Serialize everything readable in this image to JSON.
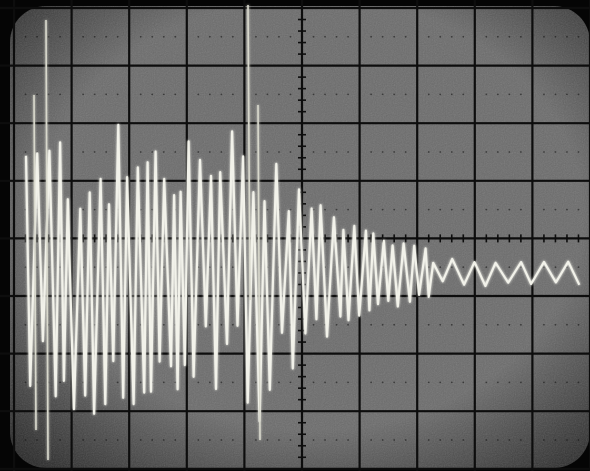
{
  "photo": {
    "subject": "oscilloscope-screen",
    "colors": {
      "bezel": "#050505",
      "screen_center": "#6a6a6a",
      "screen_edge": "#262626",
      "graticule": "#0d0d0d",
      "trace": "#f2f2ea",
      "trace_glow": "#d8d8cc"
    },
    "graticule": {
      "columns": 10,
      "rows": 8,
      "minor_ticks_per_division": 5
    },
    "waveform": {
      "kind": "damped-oscillation",
      "burst_divisions": 5.2,
      "tail_amplitude_divisions": 0.25
    }
  }
}
